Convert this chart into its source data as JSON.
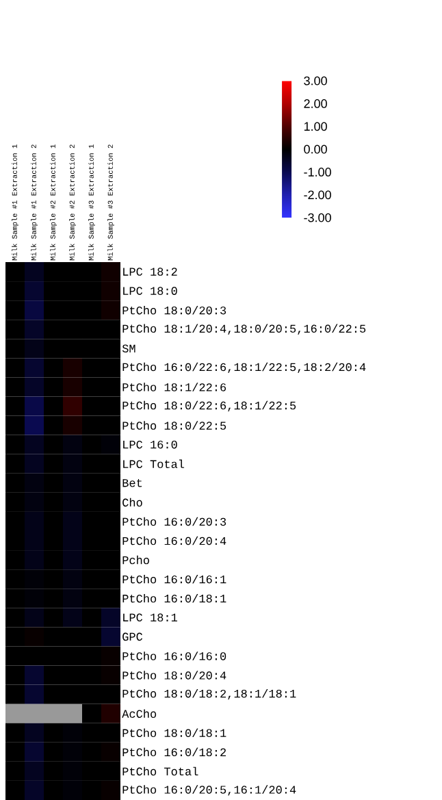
{
  "chart_data": {
    "type": "heatmap",
    "categories": [
      "Milk Sample #1 Extraction 1",
      "Milk Sample #1 Extraction 2",
      "Milk Sample #2 Extraction 1",
      "Milk Sample #2 Extraction 2",
      "Milk Sample #3 Extraction 1",
      "Milk Sample #3 Extraction 2"
    ],
    "y_categories": [
      "LPC 18:2",
      "LPC 18:0",
      "PtCho 18:0/20:3",
      "PtCho 18:1/20:4,18:0/20:5,16:0/22:5",
      "SM",
      "PtCho 16:0/22:6,18:1/22:5,18:2/20:4",
      "PtCho 18:1/22:6",
      "PtCho 18:0/22:6,18:1/22:5",
      "PtCho 18:0/22:5",
      "LPC 16:0",
      "LPC Total",
      "Bet",
      "Cho",
      "PtCho 16:0/20:3",
      "PtCho 16:0/20:4",
      "Pcho",
      "PtCho 16:0/16:1",
      "PtCho 16:0/18:1",
      "LPC 18:1",
      "GPC",
      "PtCho 16:0/16:0",
      "PtCho 18:0/20:4",
      "PtCho 18:0/18:2,18:1/18:1",
      "AcCho",
      "PtCho 18:0/18:1",
      "PtCho 16:0/18:2",
      "PtCho Total",
      "PtCho 16:0/20:5,16:1/20:4"
    ],
    "cells": [
      [
        0,
        -0.4,
        0,
        0,
        0,
        0.2
      ],
      [
        0,
        -0.6,
        0,
        0,
        0,
        0.2
      ],
      [
        0,
        -0.8,
        0,
        0,
        0,
        0.2
      ],
      [
        0,
        -0.5,
        0,
        0,
        0,
        0
      ],
      [
        0,
        -0.3,
        0,
        0,
        0,
        0
      ],
      [
        0,
        -0.6,
        0,
        0.3,
        0,
        0
      ],
      [
        0,
        -0.5,
        0,
        0.3,
        0,
        0
      ],
      [
        0,
        -0.9,
        0,
        0.6,
        0,
        0
      ],
      [
        0,
        -1.0,
        0,
        0.3,
        0,
        0
      ],
      [
        0,
        -0.4,
        0,
        -0.2,
        0,
        -0.1
      ],
      [
        0,
        -0.4,
        0,
        -0.2,
        0,
        0
      ],
      [
        0,
        -0.2,
        0,
        -0.2,
        0,
        0
      ],
      [
        0,
        -0.2,
        0,
        -0.2,
        0,
        0
      ],
      [
        0,
        -0.3,
        0,
        -0.3,
        0,
        0
      ],
      [
        0,
        -0.3,
        0,
        -0.3,
        0,
        0
      ],
      [
        0,
        -0.3,
        0,
        -0.3,
        0,
        0
      ],
      [
        0,
        -0.1,
        0,
        -0.2,
        0,
        0
      ],
      [
        0,
        -0.1,
        0,
        -0.2,
        0,
        0
      ],
      [
        0,
        -0.3,
        0,
        -0.3,
        0,
        -0.5
      ],
      [
        0,
        0.1,
        0,
        0,
        0,
        -0.6
      ],
      [
        0,
        0,
        0,
        0,
        0,
        0.1
      ],
      [
        0,
        -0.6,
        0,
        0,
        0,
        0.1
      ],
      [
        0,
        -0.6,
        0,
        0,
        0,
        0
      ],
      [
        null,
        null,
        null,
        null,
        0,
        0.4
      ],
      [
        0,
        -0.4,
        0,
        -0.1,
        0,
        0
      ],
      [
        0,
        -0.6,
        0,
        -0.1,
        0,
        0.1
      ],
      [
        0,
        -0.4,
        0,
        -0.1,
        0,
        0
      ],
      [
        0,
        -0.5,
        0,
        -0.1,
        0,
        0.1
      ]
    ],
    "clim": [
      -3,
      3
    ],
    "cticks": [
      {
        "value": 3,
        "label": "3.00"
      },
      {
        "value": 2,
        "label": "2.00"
      },
      {
        "value": 1,
        "label": "1.00"
      },
      {
        "value": 0,
        "label": "0.00"
      },
      {
        "value": -1,
        "label": "-1.00"
      },
      {
        "value": -2,
        "label": "-2.00"
      },
      {
        "value": -3,
        "label": "-3.00"
      }
    ]
  }
}
